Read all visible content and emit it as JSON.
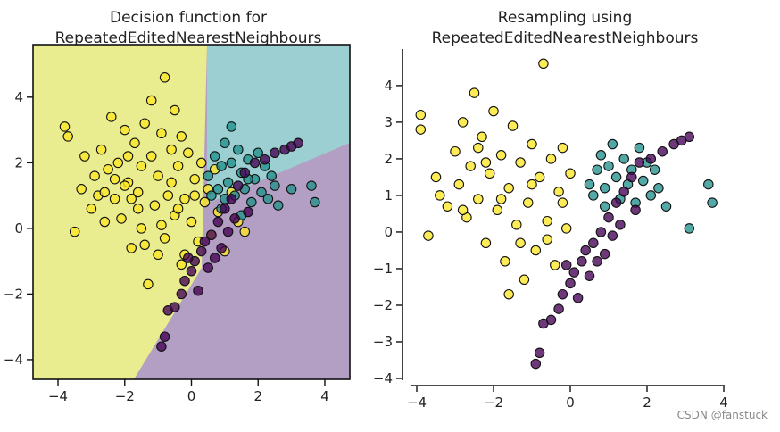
{
  "chart_data": [
    {
      "type": "scatter",
      "title_lines": [
        "Decision function for",
        "RepeatedEditedNearestNeighbours"
      ],
      "xlabel": "",
      "ylabel": "",
      "xlim": [
        -4.75,
        4.75
      ],
      "ylim": [
        -4.6,
        5.6
      ],
      "xticks": [
        -4,
        -2,
        0,
        2,
        4
      ],
      "yticks": [
        -4,
        -2,
        0,
        2,
        4
      ],
      "xtick_labels": [
        "−4",
        "−2",
        "0",
        "2",
        "4"
      ],
      "ytick_labels": [
        "−4",
        "−2",
        "0",
        "2",
        "4"
      ],
      "grid": false,
      "legend": "none",
      "background_regions": [
        {
          "class": "yellow",
          "color": "#e9ec8f"
        },
        {
          "class": "teal",
          "color": "#9ccfd2"
        },
        {
          "class": "purple",
          "color": "#b49fc4"
        }
      ],
      "series": [
        {
          "class": "yellow",
          "color": "#fde725",
          "points": [
            [
              -3.8,
              3.1
            ],
            [
              -3.7,
              2.8
            ],
            [
              -3.5,
              -0.1
            ],
            [
              -3.3,
              1.2
            ],
            [
              -3.2,
              2.2
            ],
            [
              -3.0,
              0.6
            ],
            [
              -2.9,
              1.6
            ],
            [
              -2.8,
              1.0
            ],
            [
              -2.7,
              2.4
            ],
            [
              -2.6,
              0.2
            ],
            [
              -2.5,
              1.8
            ],
            [
              -2.4,
              3.4
            ],
            [
              -2.3,
              0.9
            ],
            [
              -2.2,
              2.0
            ],
            [
              -2.1,
              0.3
            ],
            [
              -2.0,
              3.0
            ],
            [
              -1.9,
              1.4
            ],
            [
              -1.8,
              -0.6
            ],
            [
              -1.7,
              2.6
            ],
            [
              -1.6,
              1.1
            ],
            [
              -1.5,
              0.0
            ],
            [
              -1.4,
              3.2
            ],
            [
              -1.3,
              -1.7
            ],
            [
              -1.2,
              2.2
            ],
            [
              -1.1,
              0.7
            ],
            [
              -1.0,
              1.6
            ],
            [
              -0.9,
              2.9
            ],
            [
              -0.8,
              -0.3
            ],
            [
              -0.7,
              1.0
            ],
            [
              -0.6,
              2.4
            ],
            [
              -0.5,
              0.4
            ],
            [
              -0.4,
              1.9
            ],
            [
              -0.3,
              -1.1
            ],
            [
              -0.2,
              0.9
            ],
            [
              -0.1,
              2.3
            ],
            [
              0.0,
              0.2
            ],
            [
              0.1,
              1.5
            ],
            [
              0.2,
              -0.4
            ],
            [
              0.3,
              2.0
            ],
            [
              0.4,
              0.8
            ],
            [
              0.5,
              1.2
            ],
            [
              0.6,
              -0.2
            ],
            [
              0.7,
              1.8
            ],
            [
              0.8,
              0.5
            ],
            [
              1.0,
              -0.7
            ],
            [
              1.2,
              1.1
            ],
            [
              1.4,
              0.2
            ],
            [
              1.6,
              -0.1
            ],
            [
              -1.2,
              3.9
            ],
            [
              -0.8,
              4.6
            ],
            [
              -1.6,
              0.6
            ],
            [
              -2.0,
              1.3
            ],
            [
              -0.4,
              0.6
            ],
            [
              -1.9,
              2.2
            ],
            [
              -0.2,
              -0.8
            ],
            [
              -2.6,
              1.1
            ],
            [
              -1.0,
              -0.8
            ],
            [
              -0.5,
              3.6
            ],
            [
              -1.5,
              1.9
            ],
            [
              -0.9,
              0.1
            ],
            [
              -2.3,
              1.5
            ],
            [
              -0.6,
              1.4
            ],
            [
              -1.8,
              0.9
            ],
            [
              -0.3,
              2.8
            ],
            [
              -1.4,
              -0.5
            ],
            [
              0.1,
              1.0
            ]
          ]
        },
        {
          "class": "teal",
          "color": "#21918c",
          "points": [
            [
              0.5,
              1.6
            ],
            [
              0.7,
              2.2
            ],
            [
              0.8,
              1.2
            ],
            [
              0.9,
              1.9
            ],
            [
              1.0,
              2.6
            ],
            [
              1.1,
              1.4
            ],
            [
              1.2,
              2.0
            ],
            [
              1.3,
              1.0
            ],
            [
              1.4,
              2.4
            ],
            [
              1.5,
              1.7
            ],
            [
              1.6,
              1.2
            ],
            [
              1.7,
              2.1
            ],
            [
              1.8,
              0.8
            ],
            [
              1.9,
              1.5
            ],
            [
              2.0,
              2.3
            ],
            [
              2.1,
              1.1
            ],
            [
              2.2,
              1.9
            ],
            [
              2.4,
              1.6
            ],
            [
              2.6,
              0.7
            ],
            [
              3.0,
              1.2
            ],
            [
              3.6,
              1.3
            ],
            [
              3.7,
              0.8
            ],
            [
              0.9,
              0.6
            ],
            [
              1.2,
              3.1
            ],
            [
              1.5,
              0.4
            ],
            [
              2.3,
              0.9
            ],
            [
              0.6,
              1.0
            ],
            [
              1.0,
              0.9
            ],
            [
              1.7,
              1.5
            ],
            [
              2.5,
              1.3
            ]
          ]
        },
        {
          "class": "purple",
          "color": "#440154",
          "points": [
            [
              -0.9,
              -3.6
            ],
            [
              -0.8,
              -3.3
            ],
            [
              -0.7,
              -2.5
            ],
            [
              -0.5,
              -2.4
            ],
            [
              -0.3,
              -2.0
            ],
            [
              -0.2,
              -1.6
            ],
            [
              0.0,
              -1.3
            ],
            [
              0.1,
              -1.0
            ],
            [
              0.3,
              -0.7
            ],
            [
              0.4,
              -0.4
            ],
            [
              0.6,
              -0.2
            ],
            [
              0.8,
              0.2
            ],
            [
              1.0,
              0.6
            ],
            [
              1.2,
              0.9
            ],
            [
              1.4,
              1.3
            ],
            [
              1.6,
              1.7
            ],
            [
              1.9,
              2.0
            ],
            [
              2.2,
              2.1
            ],
            [
              2.5,
              2.3
            ],
            [
              2.8,
              2.4
            ],
            [
              3.0,
              2.5
            ],
            [
              3.2,
              2.6
            ],
            [
              0.2,
              -1.9
            ],
            [
              0.5,
              -1.2
            ],
            [
              0.9,
              -0.6
            ],
            [
              1.3,
              0.3
            ],
            [
              1.7,
              0.5
            ],
            [
              -0.1,
              -0.9
            ],
            [
              0.7,
              -0.9
            ],
            [
              1.1,
              -0.1
            ]
          ]
        }
      ]
    },
    {
      "type": "scatter",
      "title_lines": [
        "Resampling using",
        "RepeatedEditedNearestNeighbours"
      ],
      "xlabel": "",
      "ylabel": "",
      "xlim": [
        -4.0,
        4.0
      ],
      "ylim": [
        -4.0,
        4.9
      ],
      "xticks": [
        -4,
        -2,
        0,
        2,
        4
      ],
      "yticks": [
        -4,
        -3,
        -2,
        -1,
        0,
        1,
        2,
        3,
        4
      ],
      "xtick_labels": [
        "−4",
        "−2",
        "0",
        "2",
        "4"
      ],
      "ytick_labels": [
        "−4",
        "−3",
        "−2",
        "−1",
        "0",
        "1",
        "2",
        "3",
        "4"
      ],
      "grid": false,
      "legend": "none",
      "series": [
        {
          "class": "yellow",
          "color": "#fde725",
          "points": [
            [
              -3.9,
              3.2
            ],
            [
              -3.9,
              2.8
            ],
            [
              -3.7,
              -0.1
            ],
            [
              -3.5,
              1.5
            ],
            [
              -3.4,
              1.0
            ],
            [
              -3.2,
              0.7
            ],
            [
              -3.0,
              2.2
            ],
            [
              -2.9,
              1.3
            ],
            [
              -2.8,
              3.0
            ],
            [
              -2.7,
              0.4
            ],
            [
              -2.6,
              1.8
            ],
            [
              -2.5,
              3.8
            ],
            [
              -2.4,
              0.9
            ],
            [
              -2.3,
              2.6
            ],
            [
              -2.2,
              -0.3
            ],
            [
              -2.1,
              1.6
            ],
            [
              -2.0,
              3.3
            ],
            [
              -1.9,
              0.6
            ],
            [
              -1.8,
              2.1
            ],
            [
              -1.7,
              -0.8
            ],
            [
              -1.6,
              1.2
            ],
            [
              -1.5,
              2.9
            ],
            [
              -1.4,
              0.2
            ],
            [
              -1.3,
              1.9
            ],
            [
              -1.2,
              -1.3
            ],
            [
              -1.1,
              0.8
            ],
            [
              -1.0,
              2.4
            ],
            [
              -0.9,
              -0.5
            ],
            [
              -0.8,
              1.5
            ],
            [
              -0.7,
              4.6
            ],
            [
              -0.6,
              0.3
            ],
            [
              -0.5,
              2.0
            ],
            [
              -0.4,
              -0.9
            ],
            [
              -0.3,
              1.1
            ],
            [
              -0.2,
              2.3
            ],
            [
              -0.1,
              0.1
            ],
            [
              0.0,
              1.6
            ],
            [
              -1.6,
              -1.7
            ],
            [
              -2.2,
              1.9
            ],
            [
              -1.0,
              1.3
            ],
            [
              -0.6,
              -0.2
            ],
            [
              -2.8,
              0.6
            ],
            [
              -1.3,
              -0.3
            ],
            [
              -0.2,
              0.8
            ],
            [
              -2.4,
              2.3
            ],
            [
              -1.8,
              0.9
            ]
          ]
        },
        {
          "class": "teal",
          "color": "#21918c",
          "points": [
            [
              0.5,
              1.3
            ],
            [
              0.6,
              1.0
            ],
            [
              0.7,
              1.7
            ],
            [
              0.8,
              2.1
            ],
            [
              0.9,
              1.2
            ],
            [
              1.0,
              1.8
            ],
            [
              1.1,
              2.4
            ],
            [
              1.2,
              1.5
            ],
            [
              1.3,
              0.9
            ],
            [
              1.4,
              2.0
            ],
            [
              1.5,
              1.3
            ],
            [
              1.6,
              1.7
            ],
            [
              1.7,
              0.8
            ],
            [
              1.8,
              2.3
            ],
            [
              1.9,
              1.4
            ],
            [
              2.0,
              1.9
            ],
            [
              2.1,
              1.0
            ],
            [
              2.2,
              1.7
            ],
            [
              2.3,
              1.2
            ],
            [
              2.5,
              0.7
            ],
            [
              3.1,
              0.1
            ],
            [
              3.6,
              1.3
            ],
            [
              3.7,
              0.8
            ],
            [
              0.9,
              0.7
            ]
          ]
        },
        {
          "class": "purple",
          "color": "#440154",
          "points": [
            [
              -0.9,
              -3.6
            ],
            [
              -0.8,
              -3.3
            ],
            [
              -0.7,
              -2.5
            ],
            [
              -0.5,
              -2.4
            ],
            [
              -0.3,
              -2.1
            ],
            [
              -0.2,
              -1.7
            ],
            [
              0.0,
              -1.4
            ],
            [
              0.1,
              -1.1
            ],
            [
              0.3,
              -0.8
            ],
            [
              0.4,
              -0.5
            ],
            [
              0.6,
              -0.3
            ],
            [
              0.8,
              0.0
            ],
            [
              1.0,
              0.4
            ],
            [
              1.2,
              0.8
            ],
            [
              1.4,
              1.1
            ],
            [
              1.6,
              1.5
            ],
            [
              1.8,
              1.9
            ],
            [
              2.1,
              2.0
            ],
            [
              2.4,
              2.2
            ],
            [
              2.7,
              2.4
            ],
            [
              2.9,
              2.5
            ],
            [
              3.1,
              2.6
            ],
            [
              0.2,
              -1.8
            ],
            [
              0.5,
              -1.2
            ],
            [
              0.9,
              -0.6
            ],
            [
              1.3,
              0.2
            ],
            [
              1.7,
              0.6
            ],
            [
              -0.1,
              -0.9
            ],
            [
              0.7,
              -0.8
            ],
            [
              1.1,
              -0.1
            ]
          ]
        }
      ]
    }
  ],
  "watermark": "CSDN @fanstuck"
}
